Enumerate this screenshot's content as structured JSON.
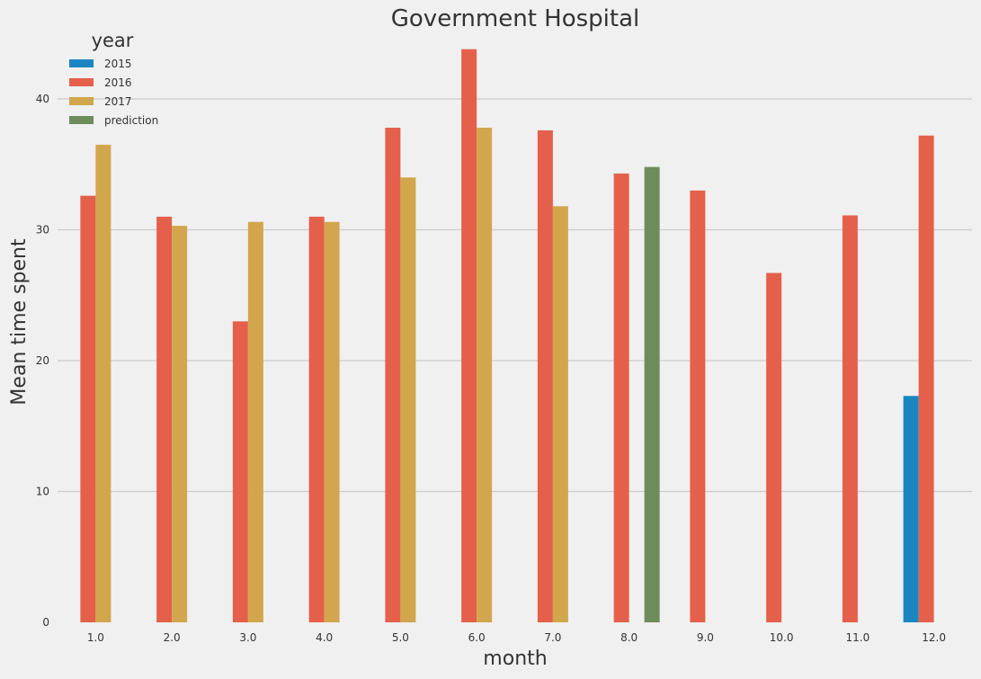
{
  "chart_data": {
    "type": "bar",
    "title": "Government Hospital",
    "xlabel": "month",
    "ylabel": "Mean time spent",
    "categories": [
      "1.0",
      "2.0",
      "3.0",
      "4.0",
      "5.0",
      "6.0",
      "7.0",
      "8.0",
      "9.0",
      "10.0",
      "11.0",
      "12.0"
    ],
    "yticks": [
      "0",
      "10",
      "20",
      "30",
      "40"
    ],
    "ylim": [
      0,
      44
    ],
    "grid": true,
    "legend": {
      "title": "year",
      "placement": "top-left",
      "labels": [
        "2015",
        "2016",
        "2017",
        "prediction"
      ]
    },
    "series": [
      {
        "name": "2015",
        "color": "#1a86c1",
        "values": [
          null,
          null,
          null,
          null,
          null,
          null,
          null,
          null,
          null,
          null,
          null,
          17.3
        ]
      },
      {
        "name": "2016",
        "color": "#e5604a",
        "values": [
          32.6,
          31.0,
          23.0,
          31.0,
          37.8,
          43.8,
          37.6,
          34.3,
          33.0,
          26.7,
          31.1,
          37.2
        ]
      },
      {
        "name": "2017",
        "color": "#d2a64d",
        "values": [
          36.5,
          30.3,
          30.6,
          30.6,
          34.0,
          37.8,
          31.8,
          null,
          null,
          null,
          null,
          null
        ]
      },
      {
        "name": "prediction",
        "color": "#6e8b5a",
        "values": [
          null,
          null,
          null,
          null,
          null,
          null,
          null,
          34.8,
          null,
          null,
          null,
          null
        ]
      }
    ]
  }
}
